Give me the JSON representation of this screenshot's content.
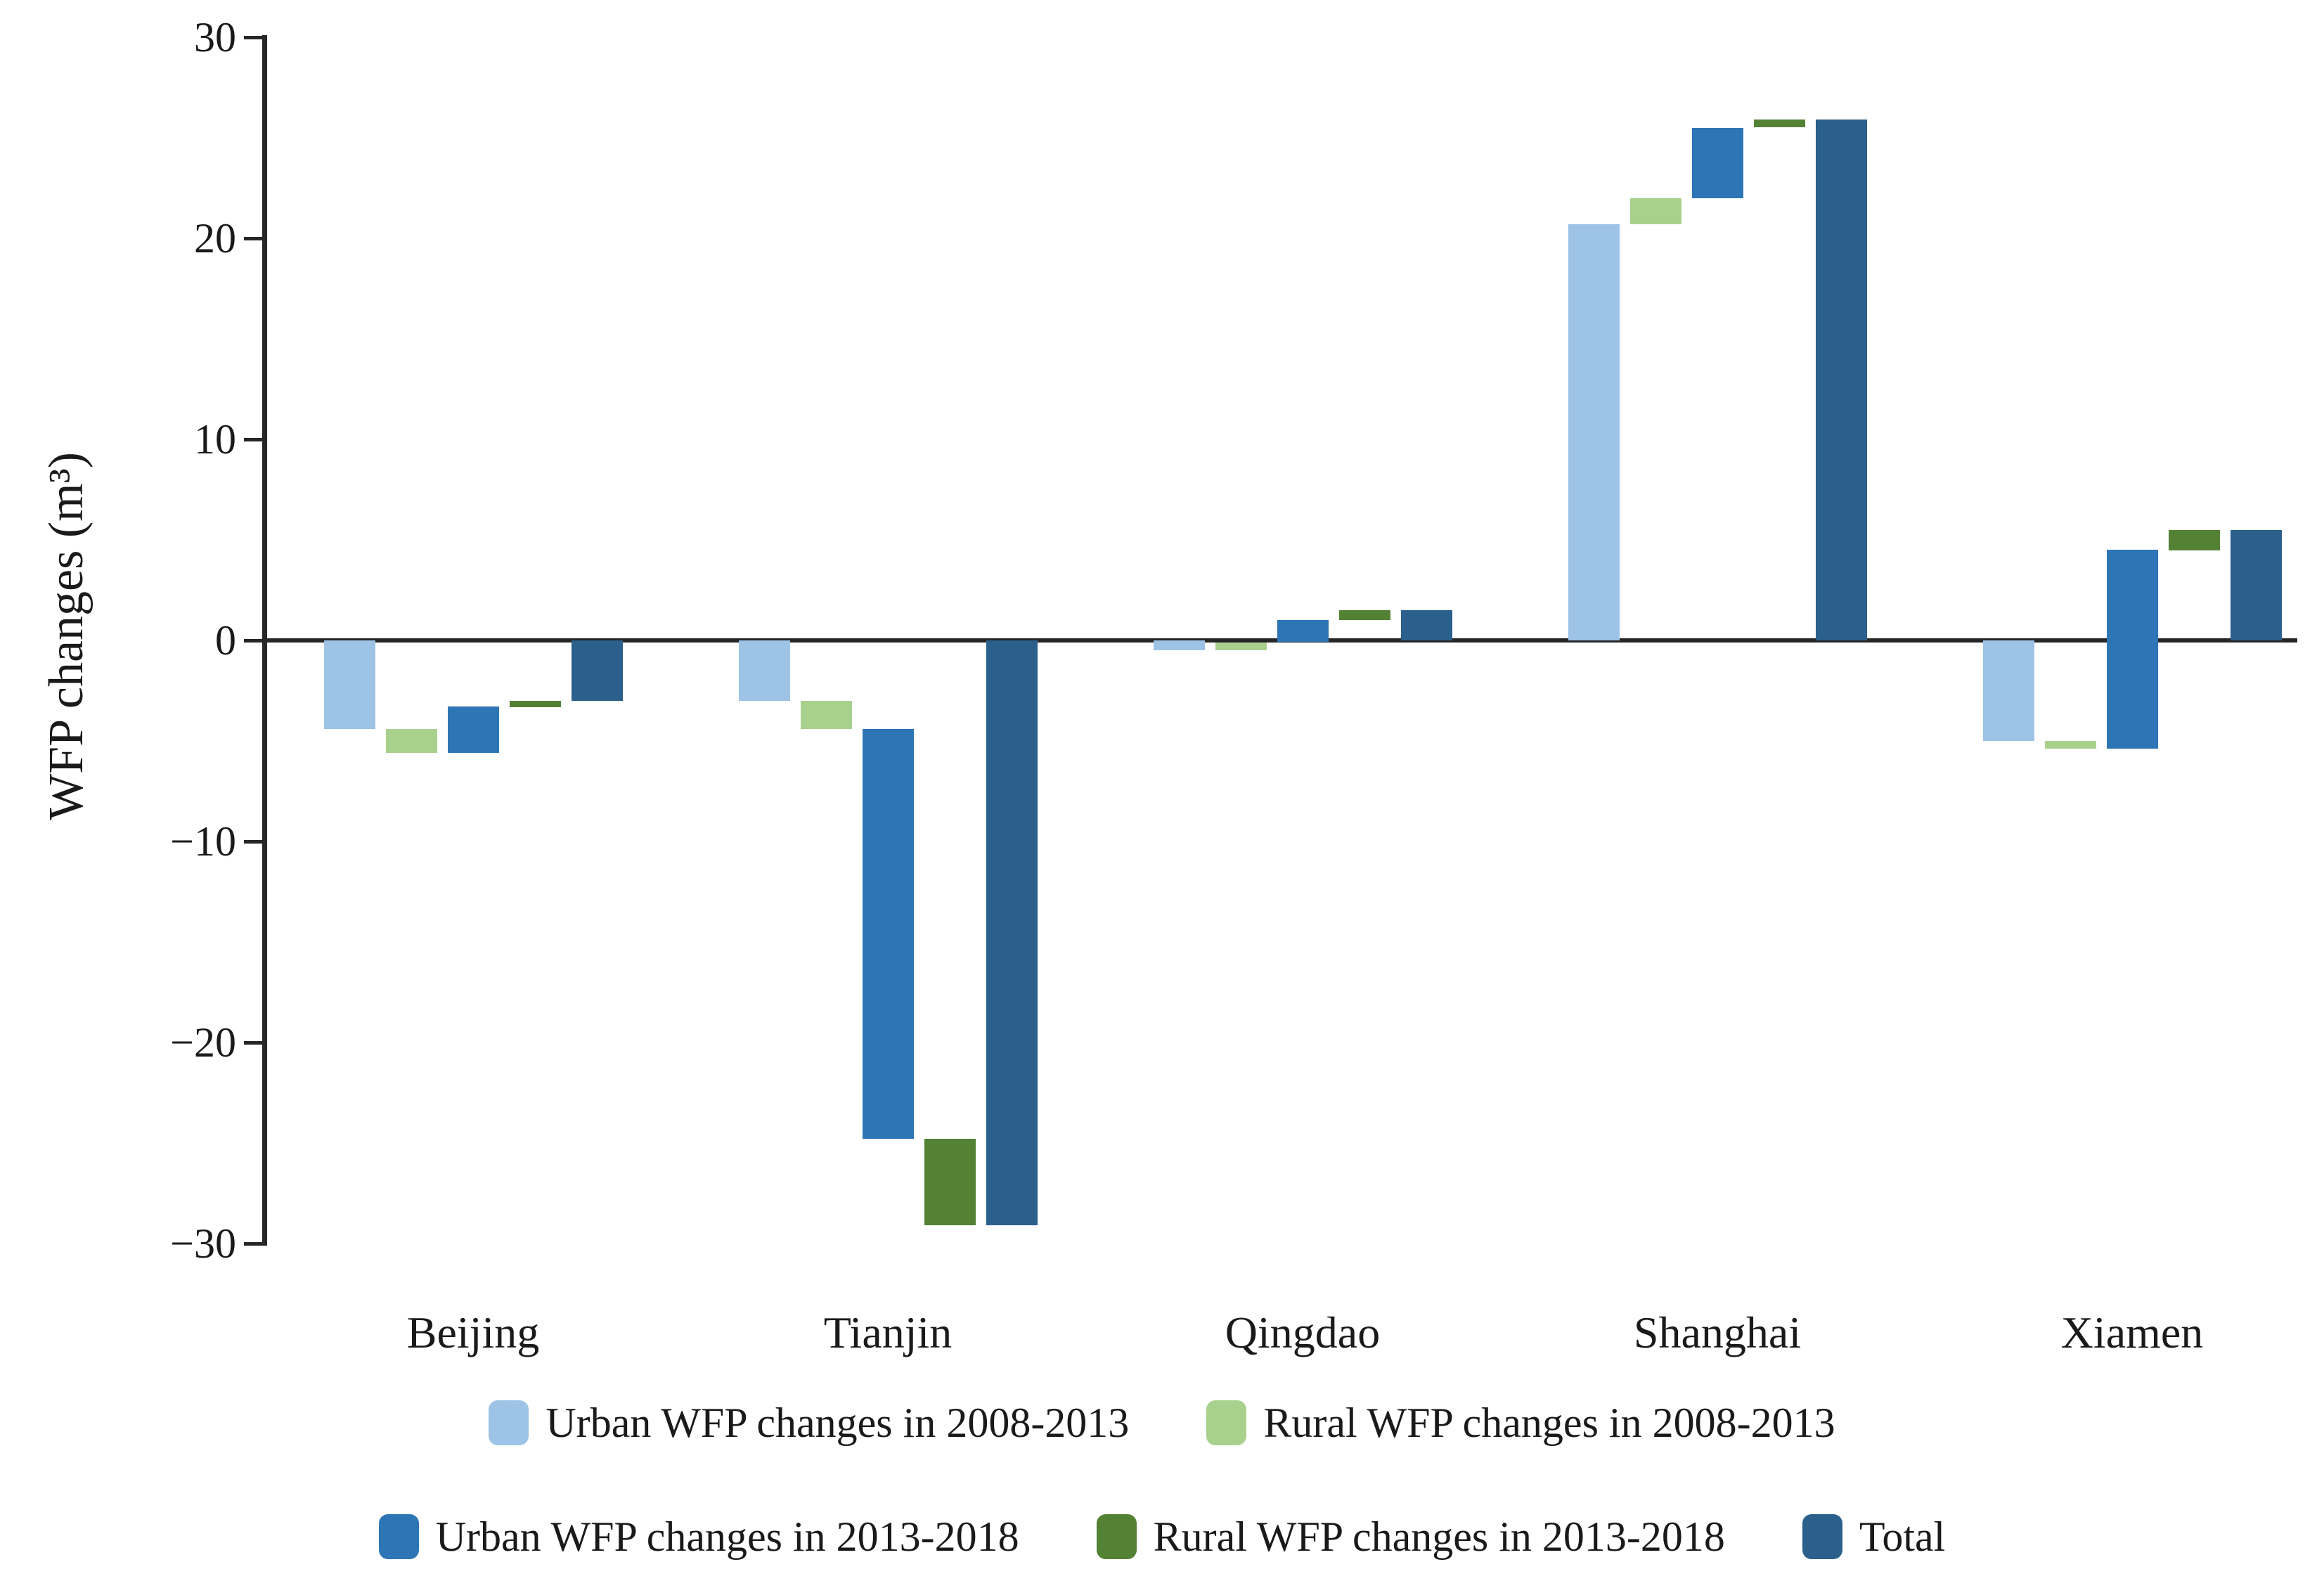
{
  "chart_data": {
    "type": "bar",
    "subtype": "waterfall",
    "title": "",
    "ylabel": "WFP changes (m³)",
    "xlabel": "",
    "ylim": [
      -30,
      30
    ],
    "yticks": [
      30,
      20,
      10,
      0,
      -10,
      -20,
      -30
    ],
    "grid": false,
    "legend_position": "bottom",
    "categories": [
      "Beijing",
      "Tianjin",
      "Qingdao",
      "Shanghai",
      "Xiamen"
    ],
    "series": [
      {
        "name": "Urban WFP changes in 2008-2013",
        "role": "change",
        "color": "#9dc3e6",
        "values": [
          -4.4,
          -3.0,
          -0.5,
          20.7,
          -5.0
        ]
      },
      {
        "name": "Rural WFP changes in 2008-2013",
        "role": "change",
        "color": "#a9d18e",
        "values": [
          -1.2,
          -1.4,
          0.4,
          1.3,
          -0.4
        ]
      },
      {
        "name": "Urban WFP changes in 2013-2018",
        "role": "change",
        "color": "#2e75b6",
        "values": [
          2.3,
          -20.4,
          1.1,
          3.5,
          9.9
        ]
      },
      {
        "name": "Rural WFP changes in 2013-2018",
        "role": "change",
        "color": "#548235",
        "values": [
          0.3,
          -4.3,
          0.5,
          0.4,
          1.0
        ]
      },
      {
        "name": "Total",
        "role": "total",
        "color": "#2b5f8c",
        "values": [
          -3.0,
          -29.1,
          1.5,
          25.9,
          5.5
        ]
      }
    ],
    "legend_rows": [
      [
        0,
        1
      ],
      [
        2,
        3,
        4
      ]
    ],
    "axis_color": "#262626",
    "text_color": "#1a1a1a"
  }
}
